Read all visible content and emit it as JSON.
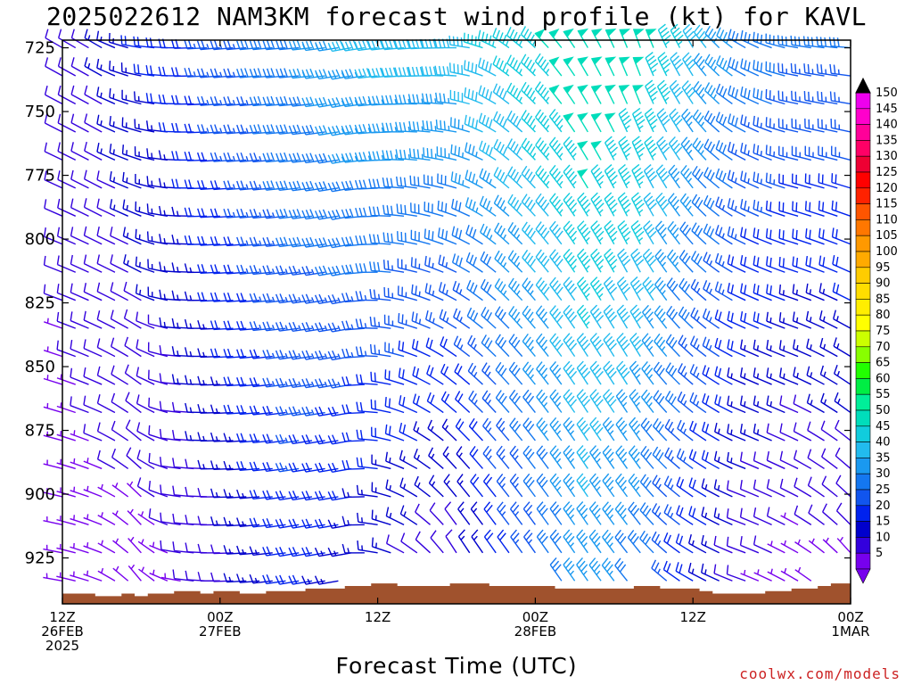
{
  "title": "2025022612 NAM3KM forecast wind profile (kt) for KAVL",
  "credit": "coolwx.com/models",
  "chart_data": {
    "type": "wind-barb-time-height",
    "xlabel": "Forecast Time (UTC)",
    "ylabel": "",
    "y_axis": {
      "label": "",
      "reversed": true,
      "ticks": [
        "725",
        "750",
        "775",
        "800",
        "825",
        "850",
        "875",
        "900",
        "925"
      ],
      "ylim_hpa": [
        722,
        943
      ]
    },
    "x_axis": {
      "unit": "hours since 2025022612",
      "xlim": [
        0,
        60
      ],
      "ticks": [
        {
          "h": 0,
          "lines": [
            "12Z",
            "26FEB",
            "2025"
          ]
        },
        {
          "h": 12,
          "lines": [
            "00Z",
            "27FEB"
          ]
        },
        {
          "h": 24,
          "lines": [
            "12Z"
          ]
        },
        {
          "h": 36,
          "lines": [
            "00Z",
            "28FEB"
          ]
        },
        {
          "h": 48,
          "lines": [
            "12Z"
          ]
        },
        {
          "h": 60,
          "lines": [
            "00Z",
            "1MAR"
          ]
        }
      ]
    },
    "time_step_hours": 1,
    "pressure_levels_hpa": [
      725,
      736,
      747,
      758,
      769,
      780,
      791,
      802,
      813,
      824,
      835,
      846,
      857,
      868,
      879,
      890,
      901,
      912,
      923,
      934
    ],
    "terrain_pressure_hpa": [
      939,
      939,
      939,
      940,
      940,
      939,
      940,
      939,
      939,
      938,
      938,
      939,
      938,
      938,
      939,
      939,
      938,
      938,
      938,
      937,
      937,
      937,
      936,
      936,
      935,
      935,
      936,
      936,
      936,
      936,
      935,
      935,
      935,
      936,
      936,
      936,
      936,
      936,
      937,
      937,
      937,
      937,
      937,
      937,
      936,
      936,
      937,
      937,
      937,
      938,
      939,
      939,
      939,
      939,
      938,
      938,
      937,
      937,
      936,
      935,
      935
    ],
    "wind_keyframes": [
      {
        "h": 0,
        "dir_top": 300,
        "dir_bot": 280,
        "spd_top": 10,
        "spd_bot": 5
      },
      {
        "h": 3,
        "dir_top": 300,
        "dir_bot": 290,
        "spd_top": 13,
        "spd_bot": 6
      },
      {
        "h": 6,
        "dir_top": 280,
        "dir_bot": 320,
        "spd_top": 18,
        "spd_bot": 5
      },
      {
        "h": 9,
        "dir_top": 270,
        "dir_bot": 280,
        "spd_top": 20,
        "spd_bot": 7
      },
      {
        "h": 12,
        "dir_top": 265,
        "dir_bot": 270,
        "spd_top": 25,
        "spd_bot": 10
      },
      {
        "h": 18,
        "dir_top": 265,
        "dir_bot": 260,
        "spd_top": 32,
        "spd_bot": 20
      },
      {
        "h": 22,
        "dir_top": 260,
        "dir_bot": 260,
        "spd_top": 38,
        "spd_bot": 14
      },
      {
        "h": 26,
        "dir_top": 265,
        "dir_bot": 300,
        "spd_top": 40,
        "spd_bot": 10
      },
      {
        "h": 30,
        "dir_top": 270,
        "dir_bot": 330,
        "spd_top": 40,
        "spd_bot": 8
      },
      {
        "h": 34,
        "dir_top": 305,
        "dir_bot": 325,
        "spd_top": 45,
        "spd_bot": 20
      },
      {
        "h": 40,
        "dir_top": 330,
        "dir_bot": 325,
        "spd_top": 52,
        "spd_bot": 35
      },
      {
        "h": 44,
        "dir_top": 340,
        "dir_bot": 320,
        "spd_top": 50,
        "spd_bot": 30
      },
      {
        "h": 48,
        "dir_top": 330,
        "dir_bot": 300,
        "spd_top": 40,
        "spd_bot": 18
      },
      {
        "h": 52,
        "dir_top": 300,
        "dir_bot": 290,
        "spd_top": 32,
        "spd_bot": 8
      },
      {
        "h": 56,
        "dir_top": 280,
        "dir_bot": 300,
        "spd_top": 28,
        "spd_bot": 5
      },
      {
        "h": 60,
        "dir_top": 275,
        "dir_bot": 320,
        "spd_top": 28,
        "spd_bot": 6
      }
    ],
    "colorbar": {
      "levels": [
        5,
        10,
        15,
        20,
        25,
        30,
        35,
        40,
        45,
        50,
        55,
        60,
        65,
        70,
        75,
        80,
        85,
        90,
        95,
        100,
        105,
        110,
        115,
        120,
        125,
        130,
        135,
        140,
        145,
        150
      ],
      "colors": [
        "#7700ee",
        "#3300dd",
        "#0000cc",
        "#0022ee",
        "#1155ee",
        "#1477f0",
        "#1a99f0",
        "#22bbee",
        "#11ccdd",
        "#00ddbb",
        "#00ee99",
        "#00ee44",
        "#22ff00",
        "#88ff00",
        "#ccff00",
        "#ffff00",
        "#ffee00",
        "#ffdd00",
        "#ffcc00",
        "#ffaa00",
        "#ff9900",
        "#ff7700",
        "#ff5500",
        "#ff2200",
        "#ff0000",
        "#ee0033",
        "#ff0066",
        "#ff0099",
        "#ff00cc",
        "#ee00ee"
      ]
    },
    "terrain_color": "#a0522d"
  }
}
